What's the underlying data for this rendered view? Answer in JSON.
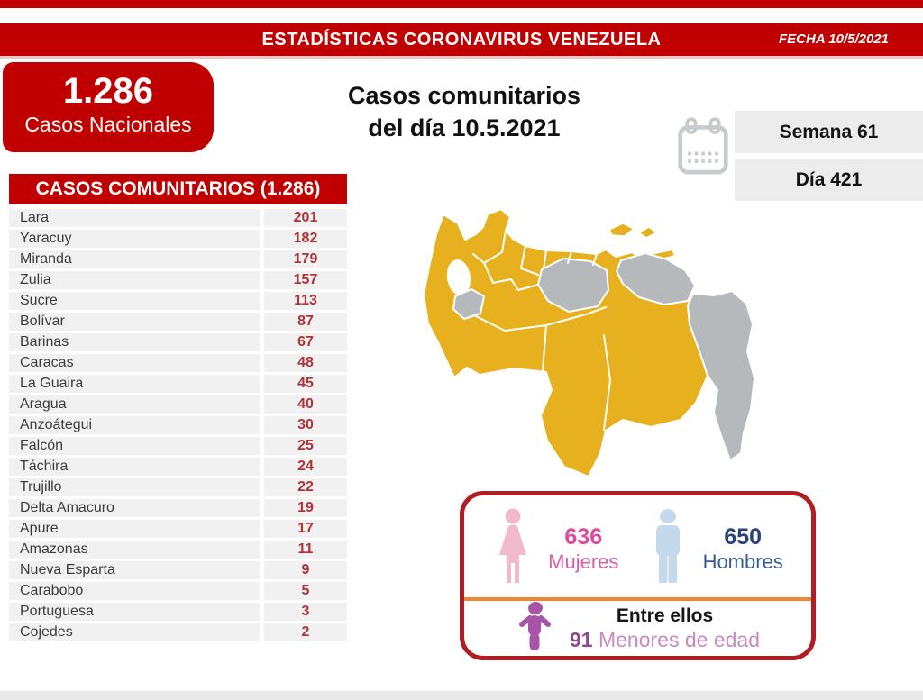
{
  "banner": {
    "title": "ESTADÍSTICAS CORONAVIRUS VENEZUELA",
    "date_label": "FECHA 10/5/2021"
  },
  "national_box": {
    "value": "1.286",
    "label": "Casos Nacionales"
  },
  "main_title": {
    "line1": "Casos comunitarios",
    "line2": "del día 10.5.2021"
  },
  "calendar": {
    "week": "Semana 61",
    "day": "Día 421"
  },
  "table": {
    "header": "CASOS COMUNITARIOS (1.286)",
    "rows": [
      {
        "state": "Lara",
        "value": "201"
      },
      {
        "state": "Yaracuy",
        "value": "182"
      },
      {
        "state": "Miranda",
        "value": "179"
      },
      {
        "state": "Zulia",
        "value": "157"
      },
      {
        "state": "Sucre",
        "value": "113"
      },
      {
        "state": "Bolívar",
        "value": "87"
      },
      {
        "state": "Barinas",
        "value": "67"
      },
      {
        "state": "Caracas",
        "value": "48"
      },
      {
        "state": "La Guaira",
        "value": "45"
      },
      {
        "state": "Aragua",
        "value": "40"
      },
      {
        "state": "Anzoátegui",
        "value": "30"
      },
      {
        "state": "Falcón",
        "value": "25"
      },
      {
        "state": "Táchira",
        "value": "24"
      },
      {
        "state": "Trujillo",
        "value": "22"
      },
      {
        "state": "Delta Amacuro",
        "value": "19"
      },
      {
        "state": "Apure",
        "value": "17"
      },
      {
        "state": "Amazonas",
        "value": "11"
      },
      {
        "state": "Nueva Esparta",
        "value": "9"
      },
      {
        "state": "Carabobo",
        "value": "5"
      },
      {
        "state": "Portuguesa",
        "value": "3"
      },
      {
        "state": "Cojedes",
        "value": "2"
      }
    ]
  },
  "gender_box": {
    "female_value": "636",
    "female_label": "Mujeres",
    "male_value": "650",
    "male_label": "Hombres",
    "minors_prefix": "Entre ellos",
    "minors_value": "91",
    "minors_label": " Menores de edad"
  },
  "colors": {
    "brand_red": "#c00000",
    "table_value_red": "#ae3236",
    "row_bg": "#f1f1f1",
    "pill_bg": "#ececec",
    "map_yellow": "#e7b01e",
    "map_gray": "#b5b9bc",
    "female_pink_icon": "#f2b8cc",
    "female_text": "#e0479f",
    "male_blue_icon": "#c5d9ed",
    "male_text": "#27427c",
    "divider_orange": "#ed8733",
    "minors_purple_icon": "#a855a8",
    "minors_value_text": "#8d4a93",
    "minors_label_text": "#c78bbf",
    "stats_border_red": "#b01e23"
  },
  "chart_data": {
    "type": "table",
    "title": "CASOS COMUNITARIOS (1.286)",
    "categories": [
      "Lara",
      "Yaracuy",
      "Miranda",
      "Zulia",
      "Sucre",
      "Bolívar",
      "Barinas",
      "Caracas",
      "La Guaira",
      "Aragua",
      "Anzoátegui",
      "Falcón",
      "Táchira",
      "Trujillo",
      "Delta Amacuro",
      "Apure",
      "Amazonas",
      "Nueva Esparta",
      "Carabobo",
      "Portuguesa",
      "Cojedes"
    ],
    "values": [
      201,
      182,
      179,
      157,
      113,
      87,
      67,
      48,
      45,
      40,
      30,
      25,
      24,
      22,
      19,
      17,
      11,
      9,
      5,
      3,
      2
    ],
    "national_total": 1286,
    "community_total": 1286,
    "date": "10.5.2021",
    "week": 61,
    "day": 421,
    "women": 636,
    "men": 650,
    "minors": 91
  }
}
